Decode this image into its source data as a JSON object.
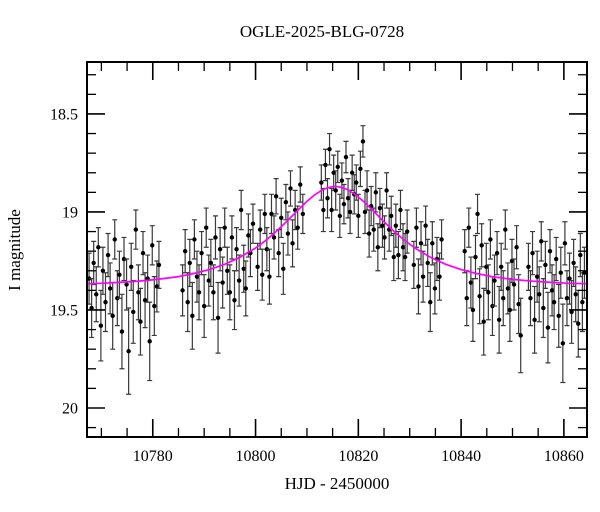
{
  "figure": {
    "title": "OGLE-2025-BLG-0728",
    "background_color": "#ffffff"
  },
  "chart_data": {
    "type": "scatter",
    "title": "OGLE-2025-BLG-0728",
    "xlabel": "HJD - 2450000",
    "ylabel": "I magnitude",
    "grid": false,
    "legend": null,
    "y_axis_inverted": true,
    "xlim": [
      10767.2,
      10864.5
    ],
    "ylim_top": 18.235,
    "ylim_bottom": 20.148,
    "x_ticks": {
      "major": [
        10780,
        10800,
        10820,
        10840,
        10860
      ],
      "labels": [
        "10780",
        "10800",
        "10820",
        "10840",
        "10860"
      ],
      "minor_step": 5
    },
    "y_ticks": {
      "major": [
        18.5,
        19,
        19.5,
        20
      ],
      "labels": [
        "18.5",
        "19",
        "19.5",
        "20"
      ],
      "minor_step": 0.1
    },
    "series": [
      {
        "name": "ogle-i-band-photometry",
        "type": "points_with_errorbars",
        "marker_color": "#000000",
        "errorbar_color": "#3a3a3a",
        "points": [
          [
            10767.6,
            19.34,
            0.13
          ],
          [
            10768.1,
            19.49,
            0.15
          ],
          [
            10768.5,
            19.26,
            0.11
          ],
          [
            10769.0,
            19.42,
            0.14
          ],
          [
            10769.4,
            19.18,
            0.1
          ],
          [
            10769.9,
            19.58,
            0.18
          ],
          [
            10770.3,
            19.3,
            0.12
          ],
          [
            10770.8,
            19.46,
            0.15
          ],
          [
            10771.3,
            19.22,
            0.11
          ],
          [
            10771.7,
            19.39,
            0.13
          ],
          [
            10772.2,
            19.53,
            0.17
          ],
          [
            10772.6,
            19.14,
            0.1
          ],
          [
            10773.1,
            19.44,
            0.14
          ],
          [
            10773.5,
            19.32,
            0.12
          ],
          [
            10774.0,
            19.61,
            0.19
          ],
          [
            10774.4,
            19.24,
            0.11
          ],
          [
            10774.9,
            19.37,
            0.13
          ],
          [
            10775.3,
            19.71,
            0.22
          ],
          [
            10775.8,
            19.28,
            0.12
          ],
          [
            10776.2,
            19.51,
            0.16
          ],
          [
            10776.7,
            19.09,
            0.1
          ],
          [
            10777.2,
            19.41,
            0.14
          ],
          [
            10777.6,
            19.56,
            0.17
          ],
          [
            10778.1,
            19.21,
            0.11
          ],
          [
            10778.5,
            19.45,
            0.14
          ],
          [
            10779.0,
            19.34,
            0.12
          ],
          [
            10779.4,
            19.66,
            0.2
          ],
          [
            10779.9,
            19.17,
            0.1
          ],
          [
            10780.3,
            19.48,
            0.15
          ],
          [
            10780.8,
            19.38,
            0.13
          ],
          [
            10781.2,
            19.27,
            0.12
          ],
          [
            10785.8,
            19.4,
            0.13
          ],
          [
            10786.3,
            19.2,
            0.11
          ],
          [
            10786.8,
            19.46,
            0.15
          ],
          [
            10787.2,
            19.26,
            0.12
          ],
          [
            10787.7,
            19.53,
            0.17
          ],
          [
            10788.1,
            19.14,
            0.1
          ],
          [
            10788.6,
            19.33,
            0.13
          ],
          [
            10789.0,
            19.41,
            0.14
          ],
          [
            10789.5,
            19.21,
            0.11
          ],
          [
            10790.0,
            19.48,
            0.16
          ],
          [
            10790.4,
            19.08,
            0.1
          ],
          [
            10790.9,
            19.35,
            0.13
          ],
          [
            10791.3,
            19.26,
            0.12
          ],
          [
            10791.8,
            19.41,
            0.14
          ],
          [
            10792.2,
            19.13,
            0.11
          ],
          [
            10792.7,
            19.54,
            0.18
          ],
          [
            10793.1,
            19.19,
            0.11
          ],
          [
            10793.6,
            19.36,
            0.13
          ],
          [
            10794.0,
            19.08,
            0.1
          ],
          [
            10794.5,
            19.3,
            0.12
          ],
          [
            10795.0,
            19.41,
            0.14
          ],
          [
            10795.4,
            19.13,
            0.11
          ],
          [
            10795.9,
            19.45,
            0.15
          ],
          [
            10796.3,
            19.19,
            0.11
          ],
          [
            10796.8,
            19.35,
            0.13
          ],
          [
            10797.2,
            18.99,
            0.1
          ],
          [
            10797.7,
            19.29,
            0.12
          ],
          [
            10798.1,
            19.39,
            0.14
          ],
          [
            10798.6,
            19.12,
            0.11
          ],
          [
            10799.0,
            19.21,
            0.12
          ],
          [
            10799.5,
            19.06,
            0.1
          ],
          [
            10800.4,
            19.28,
            0.12
          ],
          [
            10800.9,
            19.09,
            0.1
          ],
          [
            10801.3,
            19.32,
            0.13
          ],
          [
            10801.8,
            19.01,
            0.1
          ],
          [
            10802.2,
            19.19,
            0.11
          ],
          [
            10802.7,
            19.33,
            0.14
          ],
          [
            10803.1,
            19.01,
            0.1
          ],
          [
            10803.6,
            19.13,
            0.11
          ],
          [
            10804.0,
            18.92,
            0.09
          ],
          [
            10804.5,
            19.21,
            0.12
          ],
          [
            10805.0,
            19.03,
            0.1
          ],
          [
            10805.4,
            19.29,
            0.13
          ],
          [
            10805.9,
            18.95,
            0.09
          ],
          [
            10806.3,
            19.11,
            0.11
          ],
          [
            10806.8,
            18.88,
            0.09
          ],
          [
            10807.2,
            19.16,
            0.12
          ],
          [
            10807.7,
            18.99,
            0.1
          ],
          [
            10808.2,
            19.08,
            0.11
          ],
          [
            10808.7,
            18.86,
            0.09
          ],
          [
            10809.2,
            19.01,
            0.1
          ],
          [
            10812.8,
            18.85,
            0.09
          ],
          [
            10813.2,
            18.99,
            0.11
          ],
          [
            10813.6,
            18.76,
            0.08
          ],
          [
            10814.0,
            18.93,
            0.1
          ],
          [
            10814.4,
            18.68,
            0.08
          ],
          [
            10814.8,
            18.99,
            0.11
          ],
          [
            10815.2,
            18.8,
            0.09
          ],
          [
            10815.6,
            18.89,
            0.1
          ],
          [
            10816.0,
            18.77,
            0.08
          ],
          [
            10816.4,
            19.02,
            0.11
          ],
          [
            10816.8,
            18.84,
            0.09
          ],
          [
            10817.2,
            18.96,
            0.1
          ],
          [
            10817.6,
            18.72,
            0.08
          ],
          [
            10818.0,
            18.93,
            0.1
          ],
          [
            10818.4,
            19.0,
            0.11
          ],
          [
            10818.8,
            18.8,
            0.09
          ],
          [
            10819.2,
            18.91,
            0.1
          ],
          [
            10819.6,
            18.85,
            0.09
          ],
          [
            10820.0,
            19.02,
            0.11
          ],
          [
            10820.4,
            18.78,
            0.09
          ],
          [
            10820.9,
            18.64,
            0.08
          ],
          [
            10821.3,
            19.0,
            0.11
          ],
          [
            10821.7,
            18.89,
            0.1
          ],
          [
            10822.1,
            19.11,
            0.12
          ],
          [
            10822.5,
            18.97,
            0.1
          ],
          [
            10823.0,
            19.09,
            0.11
          ],
          [
            10823.4,
            18.9,
            0.1
          ],
          [
            10823.8,
            19.18,
            0.12
          ],
          [
            10824.2,
            18.98,
            0.1
          ],
          [
            10824.7,
            19.07,
            0.11
          ],
          [
            10825.1,
            19.13,
            0.11
          ],
          [
            10825.5,
            18.89,
            0.09
          ],
          [
            10826.0,
            19.09,
            0.11
          ],
          [
            10826.4,
            19.02,
            0.1
          ],
          [
            10826.9,
            19.23,
            0.12
          ],
          [
            10827.3,
            19.07,
            0.11
          ],
          [
            10827.8,
            19.22,
            0.12
          ],
          [
            10828.2,
            18.99,
            0.1
          ],
          [
            10828.7,
            19.18,
            0.12
          ],
          [
            10829.1,
            19.23,
            0.12
          ],
          [
            10829.5,
            19.1,
            0.11
          ],
          [
            10830.8,
            19.27,
            0.12
          ],
          [
            10831.3,
            19.08,
            0.1
          ],
          [
            10831.7,
            19.38,
            0.14
          ],
          [
            10832.2,
            19.16,
            0.11
          ],
          [
            10832.6,
            19.33,
            0.13
          ],
          [
            10833.1,
            19.07,
            0.1
          ],
          [
            10833.5,
            19.26,
            0.12
          ],
          [
            10834.0,
            19.46,
            0.15
          ],
          [
            10834.4,
            19.16,
            0.11
          ],
          [
            10834.9,
            19.39,
            0.13
          ],
          [
            10835.3,
            19.24,
            0.11
          ],
          [
            10835.8,
            19.33,
            0.12
          ],
          [
            10836.2,
            19.14,
            0.1
          ],
          [
            10840.7,
            19.2,
            0.11
          ],
          [
            10841.1,
            19.44,
            0.14
          ],
          [
            10841.5,
            19.08,
            0.1
          ],
          [
            10841.9,
            19.36,
            0.13
          ],
          [
            10842.3,
            19.5,
            0.16
          ],
          [
            10842.8,
            19.23,
            0.11
          ],
          [
            10843.2,
            19.01,
            0.1
          ],
          [
            10843.6,
            19.43,
            0.14
          ],
          [
            10844.0,
            19.17,
            0.11
          ],
          [
            10844.4,
            19.56,
            0.17
          ],
          [
            10844.9,
            19.28,
            0.12
          ],
          [
            10845.3,
            19.41,
            0.14
          ],
          [
            10845.7,
            19.14,
            0.1
          ],
          [
            10846.1,
            19.48,
            0.15
          ],
          [
            10846.5,
            19.35,
            0.13
          ],
          [
            10847.0,
            19.21,
            0.11
          ],
          [
            10847.4,
            19.55,
            0.17
          ],
          [
            10847.8,
            19.28,
            0.12
          ],
          [
            10848.2,
            19.44,
            0.14
          ],
          [
            10848.6,
            19.09,
            0.1
          ],
          [
            10849.1,
            19.39,
            0.13
          ],
          [
            10849.5,
            19.5,
            0.16
          ],
          [
            10849.9,
            19.25,
            0.11
          ],
          [
            10850.3,
            19.37,
            0.13
          ],
          [
            10850.8,
            19.18,
            0.11
          ],
          [
            10851.2,
            19.47,
            0.15
          ],
          [
            10851.6,
            19.63,
            0.19
          ],
          [
            10853.1,
            19.28,
            0.12
          ],
          [
            10853.5,
            19.44,
            0.14
          ],
          [
            10853.9,
            19.21,
            0.11
          ],
          [
            10854.3,
            19.55,
            0.17
          ],
          [
            10854.8,
            19.33,
            0.13
          ],
          [
            10855.2,
            19.42,
            0.14
          ],
          [
            10855.6,
            19.15,
            0.1
          ],
          [
            10856.0,
            19.49,
            0.15
          ],
          [
            10856.4,
            19.27,
            0.12
          ],
          [
            10856.9,
            19.59,
            0.18
          ],
          [
            10857.3,
            19.2,
            0.11
          ],
          [
            10857.7,
            19.4,
            0.13
          ],
          [
            10858.1,
            19.46,
            0.14
          ],
          [
            10858.5,
            19.24,
            0.11
          ],
          [
            10859.0,
            19.53,
            0.16
          ],
          [
            10859.4,
            19.31,
            0.13
          ],
          [
            10859.8,
            19.67,
            0.2
          ],
          [
            10860.2,
            19.16,
            0.11
          ],
          [
            10860.6,
            19.44,
            0.14
          ],
          [
            10861.1,
            19.34,
            0.13
          ],
          [
            10861.5,
            19.51,
            0.16
          ],
          [
            10861.9,
            19.26,
            0.12
          ],
          [
            10862.3,
            19.42,
            0.14
          ],
          [
            10862.8,
            19.57,
            0.17
          ],
          [
            10863.2,
            19.22,
            0.11
          ],
          [
            10863.6,
            19.46,
            0.15
          ],
          [
            10864.0,
            19.31,
            0.13
          ]
        ]
      },
      {
        "name": "microlensing-model-curve",
        "type": "line",
        "color": "#ff00ff",
        "points": [
          [
            10767,
            19.367
          ],
          [
            10770,
            19.364
          ],
          [
            10773,
            19.36
          ],
          [
            10776,
            19.355
          ],
          [
            10779,
            19.349
          ],
          [
            10782,
            19.34
          ],
          [
            10785,
            19.33
          ],
          [
            10788,
            19.314
          ],
          [
            10791,
            19.294
          ],
          [
            10794,
            19.267
          ],
          [
            10797,
            19.231
          ],
          [
            10800,
            19.184
          ],
          [
            10802,
            19.145
          ],
          [
            10804,
            19.1
          ],
          [
            10806,
            19.05
          ],
          [
            10808,
            18.997
          ],
          [
            10810,
            18.946
          ],
          [
            10811.5,
            18.913
          ],
          [
            10813,
            18.887
          ],
          [
            10814,
            18.877
          ],
          [
            10815,
            18.871
          ],
          [
            10815.5,
            18.87
          ],
          [
            10816,
            18.871
          ],
          [
            10817,
            18.877
          ],
          [
            10818,
            18.887
          ],
          [
            10819.5,
            18.913
          ],
          [
            10821,
            18.946
          ],
          [
            10823,
            18.997
          ],
          [
            10825,
            19.05
          ],
          [
            10827,
            19.1
          ],
          [
            10829,
            19.145
          ],
          [
            10831,
            19.184
          ],
          [
            10834,
            19.231
          ],
          [
            10837,
            19.267
          ],
          [
            10840,
            19.294
          ],
          [
            10843,
            19.314
          ],
          [
            10846,
            19.33
          ],
          [
            10850,
            19.344
          ],
          [
            10854,
            19.353
          ],
          [
            10858,
            19.36
          ],
          [
            10861,
            19.364
          ],
          [
            10864.5,
            19.366
          ]
        ]
      }
    ]
  }
}
